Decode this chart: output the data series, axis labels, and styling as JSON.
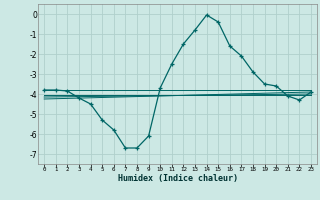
{
  "xlabel": "Humidex (Indice chaleur)",
  "background_color": "#cce8e4",
  "grid_color": "#b0d0cc",
  "line_color": "#006666",
  "xlim": [
    -0.5,
    23.5
  ],
  "ylim": [
    -7.5,
    0.5
  ],
  "yticks": [
    0,
    -1,
    -2,
    -3,
    -4,
    -5,
    -6,
    -7
  ],
  "xticks": [
    0,
    1,
    2,
    3,
    4,
    5,
    6,
    7,
    8,
    9,
    10,
    11,
    12,
    13,
    14,
    15,
    16,
    17,
    18,
    19,
    20,
    21,
    22,
    23
  ],
  "curve1_x": [
    0,
    1,
    2,
    3,
    4,
    5,
    6,
    7,
    8,
    9,
    10,
    11,
    12,
    13,
    14,
    15,
    16,
    17,
    18,
    19,
    20,
    21,
    22,
    23
  ],
  "curve1_y": [
    -3.8,
    -3.8,
    -3.85,
    -4.2,
    -4.5,
    -5.3,
    -5.8,
    -6.7,
    -6.7,
    -6.1,
    -3.7,
    -2.5,
    -1.5,
    -0.8,
    -0.05,
    -0.4,
    -1.6,
    -2.1,
    -2.9,
    -3.5,
    -3.6,
    -4.1,
    -4.3,
    -3.9
  ],
  "line2_x": [
    0,
    23
  ],
  "line2_y": [
    -3.8,
    -3.8
  ],
  "line3_x": [
    0,
    23
  ],
  "line3_y": [
    -4.05,
    -4.05
  ],
  "line4_x": [
    0,
    23
  ],
  "line4_y": [
    -4.25,
    -3.9
  ],
  "line5_x": [
    0,
    23
  ],
  "line5_y": [
    -4.15,
    -4.0
  ]
}
